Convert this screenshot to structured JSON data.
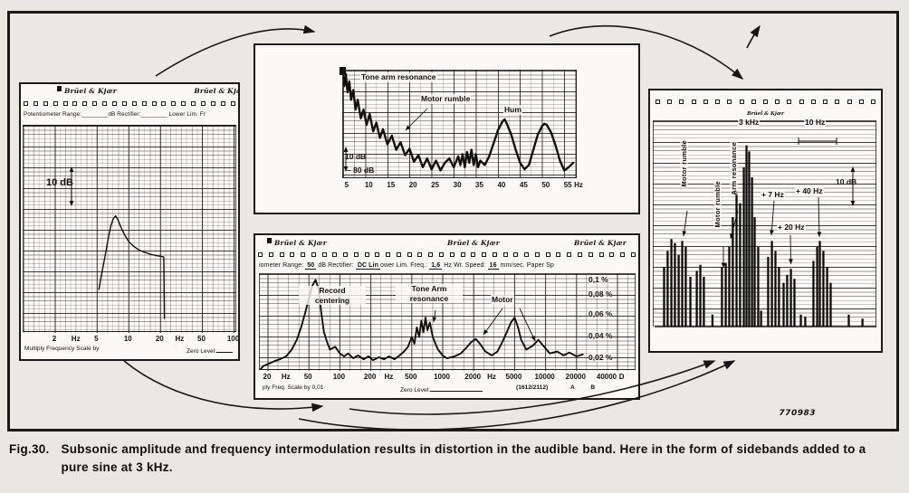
{
  "figure": {
    "caption_label": "Fig.30.",
    "caption_text": "Subsonic amplitude and frequency intermodulation results in distortion in the audible band. Here in the form of sidebands added to a pure sine at 3 kHz.",
    "stamp": "770983"
  },
  "colors": {
    "paper": "#e9e7e1",
    "panel": "#faf9f5",
    "ink": "#141414",
    "accent": "#1a1a1a"
  },
  "left_panel": {
    "brand_left": "Brüel & Kjær",
    "brand_right": "Brüel & Kja",
    "settings_line": "Potentiometer Range:________dB  Rectifier:________  Lower Lim. Fr",
    "db_marker": "10 dB",
    "footer_left": "Multiply Frequency Scale by",
    "footer_right": "Zero Level:"
  },
  "top_panel": {
    "label_tone_arm": "Tone arm resonance",
    "label_motor_rumble": "Motor rumble",
    "label_hum": "Hum",
    "db_marker": "10 dB",
    "ref_level": "– 80 dB"
  },
  "bottom_panel": {
    "brands": [
      "Brüel & Kjær",
      "Brüel & Kjær",
      "Brüel & Kjær"
    ],
    "settings": [
      {
        "t": "iometer  Range: "
      },
      {
        "t": "50",
        "u": true
      },
      {
        "t": " dB  Rectifier: "
      },
      {
        "t": "DC Lin",
        "u": true
      },
      {
        "t": "ower  Lim.  Freq.: "
      },
      {
        "t": "1,6",
        "u": true
      },
      {
        "t": " Hz  Wr.  Speed: "
      },
      {
        "t": "16",
        "u": true
      },
      {
        "t": " mm/sec. Paper  Sp"
      }
    ],
    "record_centering": [
      "Record",
      "centering"
    ],
    "tone_arm": [
      "Tone  Arm",
      "resonance"
    ],
    "motor": "Motor",
    "footer_left": "ply  Freq.  Scale by 0,01",
    "footer_zero": "Zero  Level:",
    "footer_code": "(1612/2112)",
    "footer_ab": "A     B"
  },
  "right_panel": {
    "brand": "Brüel & Kjær",
    "label_carrier": "3 kHz",
    "label_span": "10 Hz",
    "label_db": "10 dB",
    "vlabel_1": "Motor rumble",
    "vlabel_2": "Motor rumble",
    "vlabel_3": "Arm resonance",
    "label_p7": "+ 7 Hz",
    "label_p40": "+ 40 Hz",
    "label_p20": "+ 20 Hz"
  },
  "chart_data": [
    {
      "type": "line",
      "title": "Subsonic response with tone arm resonance peak",
      "x_scale": "log",
      "x_unit": "Hz",
      "x_range_hz": [
        1,
        107
      ],
      "level_scale_marker": "10 dB",
      "x_ticks": [
        {
          "label": "2",
          "hz": 2
        },
        {
          "label": "Hz",
          "hz": 3.2
        },
        {
          "label": "5",
          "hz": 5
        },
        {
          "label": "10",
          "hz": 10
        },
        {
          "label": "20",
          "hz": 20
        },
        {
          "label": "Hz",
          "hz": 31
        },
        {
          "label": "50",
          "hz": 50
        },
        {
          "label": "100",
          "hz": 100
        }
      ],
      "series": [
        [
          5.2,
          0.21
        ],
        [
          5.5,
          0.28
        ],
        [
          5.9,
          0.36
        ],
        [
          6.3,
          0.44
        ],
        [
          6.7,
          0.51
        ],
        [
          7.1,
          0.55
        ],
        [
          7.5,
          0.565
        ],
        [
          7.9,
          0.545
        ],
        [
          8.5,
          0.505
        ],
        [
          9.2,
          0.47
        ],
        [
          10,
          0.44
        ],
        [
          11,
          0.42
        ],
        [
          12.5,
          0.4
        ],
        [
          14,
          0.39
        ],
        [
          16,
          0.38
        ],
        [
          18,
          0.374
        ],
        [
          20,
          0.37
        ],
        [
          21.5,
          0.367
        ],
        [
          21.8,
          0.07
        ]
      ]
    },
    {
      "type": "line",
      "title": "Rumble spectrum 0–55 Hz",
      "x_scale": "linear",
      "x_unit": "Hz",
      "x_range_hz": [
        4,
        57
      ],
      "level_scale_marker": "10 dB",
      "reference_level": "– 80 dB",
      "peaks": {
        "tone_arm_resonance_hz": 5,
        "motor_rumble_hz": 31,
        "hum_hz": 50,
        "secondary_hz": 40
      },
      "x_ticks": [
        {
          "label": "5",
          "hz": 5
        },
        {
          "label": "10",
          "hz": 10
        },
        {
          "label": "15",
          "hz": 15
        },
        {
          "label": "20",
          "hz": 20
        },
        {
          "label": "25",
          "hz": 25
        },
        {
          "label": "30",
          "hz": 30
        },
        {
          "label": "35",
          "hz": 35
        },
        {
          "label": "40",
          "hz": 40
        },
        {
          "label": "45",
          "hz": 45
        },
        {
          "label": "50",
          "hz": 50
        },
        {
          "label": "55",
          "hz": 55
        },
        {
          "label": "Hz",
          "hz": 57.4
        }
      ],
      "series": [
        [
          4,
          0.95
        ],
        [
          4.3,
          0.86
        ],
        [
          4.6,
          0.97
        ],
        [
          5,
          0.8
        ],
        [
          5.4,
          0.9
        ],
        [
          5.8,
          0.73
        ],
        [
          6.3,
          0.82
        ],
        [
          6.8,
          0.64
        ],
        [
          7.3,
          0.73
        ],
        [
          8,
          0.56
        ],
        [
          8.6,
          0.64
        ],
        [
          9.3,
          0.5
        ],
        [
          10,
          0.6
        ],
        [
          10.8,
          0.44
        ],
        [
          11.5,
          0.52
        ],
        [
          12.3,
          0.38
        ],
        [
          13,
          0.46
        ],
        [
          14,
          0.32
        ],
        [
          15,
          0.4
        ],
        [
          16,
          0.27
        ],
        [
          17,
          0.34
        ],
        [
          18,
          0.22
        ],
        [
          19,
          0.28
        ],
        [
          20,
          0.16
        ],
        [
          21,
          0.22
        ],
        [
          22,
          0.11
        ],
        [
          23,
          0.19
        ],
        [
          24,
          0.09
        ],
        [
          25,
          0.17
        ],
        [
          26,
          0.08
        ],
        [
          27,
          0.15
        ],
        [
          28,
          0.19
        ],
        [
          29,
          0.11
        ],
        [
          30,
          0.21
        ],
        [
          30.5,
          0.13
        ],
        [
          31,
          0.23
        ],
        [
          31.5,
          0.11
        ],
        [
          32,
          0.25
        ],
        [
          32.5,
          0.15
        ],
        [
          33,
          0.27
        ],
        [
          33.5,
          0.13
        ],
        [
          34,
          0.23
        ],
        [
          34.5,
          0.11
        ],
        [
          35,
          0.17
        ],
        [
          36,
          0.13
        ],
        [
          37,
          0.21
        ],
        [
          38,
          0.33
        ],
        [
          39,
          0.45
        ],
        [
          40,
          0.53
        ],
        [
          40.5,
          0.55
        ],
        [
          41,
          0.51
        ],
        [
          42,
          0.41
        ],
        [
          43,
          0.27
        ],
        [
          44,
          0.15
        ],
        [
          45,
          0.09
        ],
        [
          46,
          0.13
        ],
        [
          47,
          0.27
        ],
        [
          48,
          0.41
        ],
        [
          49,
          0.49
        ],
        [
          49.5,
          0.51
        ],
        [
          50,
          0.5
        ],
        [
          51,
          0.43
        ],
        [
          52,
          0.31
        ],
        [
          53,
          0.17
        ],
        [
          54,
          0.08
        ],
        [
          55,
          0.11
        ],
        [
          56,
          0.15
        ]
      ]
    },
    {
      "type": "line",
      "title": "Wow and flutter spectrum (Frequency scale × 0,01)",
      "x_scale": "log",
      "x_unit": "Hz",
      "x_range_hz": [
        17,
        56000
      ],
      "y_unit": "%",
      "x_ticks": [
        {
          "label": "20",
          "hz": 20
        },
        {
          "label": "Hz",
          "hz": 30.5
        },
        {
          "label": "50",
          "hz": 50
        },
        {
          "label": "100",
          "hz": 100
        },
        {
          "label": "200",
          "hz": 200
        },
        {
          "label": "Hz",
          "hz": 305
        },
        {
          "label": "500",
          "hz": 500
        },
        {
          "label": "1000",
          "hz": 1000
        },
        {
          "label": "2000",
          "hz": 2000
        },
        {
          "label": "Hz",
          "hz": 3050
        },
        {
          "label": "5000",
          "hz": 5000
        },
        {
          "label": "10000",
          "hz": 10000
        },
        {
          "label": "20000",
          "hz": 20000
        },
        {
          "label": "40000",
          "hz": 40000
        },
        {
          "label": "D",
          "hz": 56000
        }
      ],
      "y_ticks": [
        {
          "label": "0,1 %",
          "y": 2
        },
        {
          "label": "0,08 %",
          "y": 18
        },
        {
          "label": "0,06 %",
          "y": 40
        },
        {
          "label": "0,04 %",
          "y": 64
        },
        {
          "label": "0,02 %",
          "y": 88
        }
      ],
      "series": [
        [
          17,
          0.02
        ],
        [
          18,
          0.05
        ],
        [
          20,
          0.07
        ],
        [
          23,
          0.1
        ],
        [
          26,
          0.12
        ],
        [
          30,
          0.15
        ],
        [
          34,
          0.22
        ],
        [
          38,
          0.32
        ],
        [
          42,
          0.45
        ],
        [
          46,
          0.6
        ],
        [
          50,
          0.75
        ],
        [
          54,
          0.88
        ],
        [
          58,
          0.94
        ],
        [
          62,
          0.85
        ],
        [
          66,
          0.6
        ],
        [
          70,
          0.4
        ],
        [
          75,
          0.3
        ],
        [
          80,
          0.22
        ],
        [
          90,
          0.25
        ],
        [
          100,
          0.18
        ],
        [
          110,
          0.15
        ],
        [
          120,
          0.18
        ],
        [
          135,
          0.13
        ],
        [
          150,
          0.16
        ],
        [
          170,
          0.12
        ],
        [
          190,
          0.15
        ],
        [
          210,
          0.11
        ],
        [
          240,
          0.14
        ],
        [
          270,
          0.12
        ],
        [
          300,
          0.15
        ],
        [
          340,
          0.12
        ],
        [
          380,
          0.16
        ],
        [
          420,
          0.2
        ],
        [
          460,
          0.25
        ],
        [
          500,
          0.35
        ],
        [
          530,
          0.28
        ],
        [
          560,
          0.45
        ],
        [
          590,
          0.35
        ],
        [
          620,
          0.52
        ],
        [
          650,
          0.4
        ],
        [
          680,
          0.55
        ],
        [
          710,
          0.42
        ],
        [
          750,
          0.5
        ],
        [
          800,
          0.35
        ],
        [
          850,
          0.28
        ],
        [
          900,
          0.22
        ],
        [
          1000,
          0.16
        ],
        [
          1100,
          0.13
        ],
        [
          1300,
          0.15
        ],
        [
          1500,
          0.18
        ],
        [
          1700,
          0.24
        ],
        [
          1900,
          0.3
        ],
        [
          2100,
          0.33
        ],
        [
          2300,
          0.28
        ],
        [
          2600,
          0.2
        ],
        [
          3000,
          0.16
        ],
        [
          3400,
          0.2
        ],
        [
          3800,
          0.3
        ],
        [
          4200,
          0.4
        ],
        [
          4600,
          0.5
        ],
        [
          5000,
          0.55
        ],
        [
          5400,
          0.45
        ],
        [
          5800,
          0.32
        ],
        [
          6500,
          0.22
        ],
        [
          7500,
          0.26
        ],
        [
          8500,
          0.32
        ],
        [
          9500,
          0.26
        ],
        [
          11000,
          0.18
        ],
        [
          13000,
          0.2
        ],
        [
          15000,
          0.16
        ],
        [
          17000,
          0.19
        ],
        [
          20000,
          0.15
        ],
        [
          23000,
          0.17
        ]
      ]
    },
    {
      "type": "bar-spectrum",
      "title": "3 kHz tone with intermodulation sidebands",
      "carrier": "3 kHz",
      "span_marker": "10 Hz",
      "level_scale_marker": "10 dB",
      "sidebands_hz": [
        7,
        20,
        40
      ],
      "spikes": [
        [
          0.041,
          0.3
        ],
        [
          0.057,
          0.38
        ],
        [
          0.074,
          0.44
        ],
        [
          0.09,
          0.42
        ],
        [
          0.107,
          0.36
        ],
        [
          0.123,
          0.43
        ],
        [
          0.139,
          0.4
        ],
        [
          0.16,
          0.25
        ],
        [
          0.189,
          0.28
        ],
        [
          0.205,
          0.31
        ],
        [
          0.221,
          0.25
        ],
        [
          0.26,
          0.06
        ],
        [
          0.303,
          0.3
        ],
        [
          0.32,
          0.32
        ],
        [
          0.336,
          0.4
        ],
        [
          0.352,
          0.55
        ],
        [
          0.369,
          0.68
        ],
        [
          0.385,
          0.62
        ],
        [
          0.402,
          0.8
        ],
        [
          0.414,
          0.91
        ],
        [
          0.426,
          0.88
        ],
        [
          0.439,
          0.75
        ],
        [
          0.451,
          0.55
        ],
        [
          0.467,
          0.4
        ],
        [
          0.48,
          0.08
        ],
        [
          0.512,
          0.35
        ],
        [
          0.529,
          0.43
        ],
        [
          0.545,
          0.38
        ],
        [
          0.561,
          0.3
        ],
        [
          0.582,
          0.22
        ],
        [
          0.598,
          0.26
        ],
        [
          0.615,
          0.29
        ],
        [
          0.631,
          0.24
        ],
        [
          0.66,
          0.06
        ],
        [
          0.68,
          0.05
        ],
        [
          0.717,
          0.33
        ],
        [
          0.734,
          0.4
        ],
        [
          0.746,
          0.43
        ],
        [
          0.762,
          0.38
        ],
        [
          0.779,
          0.3
        ],
        [
          0.795,
          0.22
        ],
        [
          0.877,
          0.06
        ],
        [
          0.939,
          0.04
        ]
      ]
    }
  ]
}
